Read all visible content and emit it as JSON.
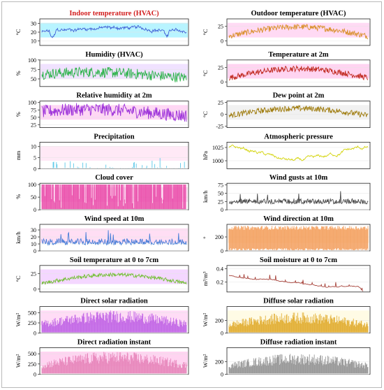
{
  "chart_data": [
    {
      "key": "indoor_temp",
      "type": "line",
      "title": "Indoor temperature (HVAC)",
      "title_color": "#d21f1f",
      "ylabel": "°C",
      "ylim": [
        5,
        35
      ],
      "yticks": [
        10,
        20,
        30
      ],
      "color": "#3f5fd6",
      "shade": "#00d9ff",
      "pattern": "temp_indoor",
      "mean": 22,
      "amp": 5,
      "noise": 2.5
    },
    {
      "key": "outdoor_temp",
      "type": "line",
      "title": "Outdoor temperature (HVAC)",
      "title_color": "#000000",
      "ylabel": "°C",
      "ylim": [
        -8,
        38
      ],
      "yticks": [
        0,
        25
      ],
      "color": "#d9902a",
      "shade": "#ff7ad6",
      "pattern": "seasonal",
      "mean": 16,
      "amp": 16,
      "noise": 5
    },
    {
      "key": "humidity",
      "type": "line",
      "title": "Humidity (HVAC)",
      "title_color": "#000000",
      "ylabel": "%",
      "ylim": [
        30,
        100
      ],
      "yticks": [
        50,
        75,
        100
      ],
      "color": "#2db34a",
      "shade": "#c896ff",
      "pattern": "noisy",
      "mean": 60,
      "amp": 8,
      "noise": 14
    },
    {
      "key": "temp_2m",
      "type": "line",
      "title": "Temperature at 2m",
      "title_color": "#000000",
      "ylabel": "°C",
      "ylim": [
        -8,
        38
      ],
      "yticks": [
        0,
        25
      ],
      "color": "#c0271c",
      "shade": "#ff66cc",
      "pattern": "seasonal",
      "mean": 15,
      "amp": 16,
      "noise": 5
    },
    {
      "key": "rel_humidity",
      "type": "line",
      "title": "Relative humidity at 2m",
      "title_color": "#000000",
      "ylabel": "%",
      "ylim": [
        15,
        105
      ],
      "yticks": [
        25,
        50,
        75,
        100
      ],
      "color": "#9b30d9",
      "shade": "#ff70d6",
      "pattern": "noisy",
      "mean": 65,
      "amp": 12,
      "noise": 22
    },
    {
      "key": "dew_point",
      "type": "line",
      "title": "Dew point at 2m",
      "title_color": "#000000",
      "ylabel": "°C",
      "ylim": [
        -28,
        28
      ],
      "yticks": [
        -25,
        0,
        25
      ],
      "color": "#9e7a0a",
      "shade": "#cccccc",
      "pattern": "seasonal",
      "mean": 5,
      "amp": 15,
      "noise": 6
    },
    {
      "key": "precip",
      "type": "spikes",
      "title": "Precipitation",
      "title_color": "#000000",
      "ylabel": "mm",
      "ylim": [
        0,
        12
      ],
      "yticks": [
        0,
        5,
        10
      ],
      "color": "#5bc8e8",
      "shade": "#ffb0e0",
      "pattern": "spikes",
      "mean": 0,
      "amp": 11,
      "noise": 0
    },
    {
      "key": "pressure",
      "type": "line",
      "title": "Atmospheric pressure",
      "title_color": "#000000",
      "ylabel": "hPa",
      "ylim": [
        985,
        1035
      ],
      "yticks": [
        1000,
        1025
      ],
      "color": "#d4d40d",
      "shade": "#ffffff",
      "pattern": "pressure",
      "mean": 1012,
      "amp": 12,
      "noise": 6
    },
    {
      "key": "cloud",
      "type": "dense",
      "title": "Cloud cover",
      "title_color": "#000000",
      "ylabel": "%",
      "ylim": [
        0,
        105
      ],
      "yticks": [
        0,
        50,
        100
      ],
      "color": "#e83fa3",
      "shade": "#ff99dd",
      "pattern": "dense_full",
      "mean": 0,
      "amp": 100,
      "noise": 0
    },
    {
      "key": "gusts",
      "type": "line",
      "title": "Wind gusts at 10m",
      "title_color": "#000000",
      "ylabel": "km/h",
      "ylim": [
        0,
        80
      ],
      "yticks": [
        0,
        25,
        50,
        75
      ],
      "color": "#4a4a4a",
      "shade": "#ffffff",
      "pattern": "gusty",
      "mean": 22,
      "amp": 0,
      "noise": 14
    },
    {
      "key": "wind_speed",
      "type": "line",
      "title": "Wind speed at 10m",
      "title_color": "#000000",
      "ylabel": "km/h",
      "ylim": [
        0,
        38
      ],
      "yticks": [
        0,
        10,
        20,
        30
      ],
      "color": "#4a80d8",
      "shade": "#ff88d8",
      "pattern": "gusty",
      "mean": 11,
      "amp": 0,
      "noise": 8
    },
    {
      "key": "wind_dir",
      "type": "dense",
      "title": "Wind direction at 10m",
      "title_color": "#000000",
      "ylabel": "°",
      "ylim": [
        0,
        380
      ],
      "yticks": [
        0,
        200
      ],
      "color": "#f39a55",
      "shade": "#ffd0a0",
      "pattern": "dense_band",
      "mean": 180,
      "amp": 360,
      "noise": 0
    },
    {
      "key": "soil_temp",
      "type": "line",
      "title": "Soil temperature at 0 to 7cm",
      "title_color": "#000000",
      "ylabel": "°C",
      "ylim": [
        -5,
        38
      ],
      "yticks": [
        0,
        25
      ],
      "color": "#6fbf2e",
      "shade": "#d76eff",
      "pattern": "seasonal",
      "mean": 16,
      "amp": 14,
      "noise": 3
    },
    {
      "key": "soil_moist",
      "type": "line",
      "title": "Soil moisture at 0 to 7cm",
      "title_color": "#000000",
      "ylabel": "m³/m³",
      "ylim": [
        0.05,
        0.45
      ],
      "yticks": [
        0.2,
        0.4
      ],
      "color": "#a8463e",
      "shade": "#ffffff",
      "pattern": "moisture",
      "mean": 0.27,
      "amp": 0.06,
      "noise": 0.01
    },
    {
      "key": "direct_solar",
      "type": "solar",
      "title": "Direct solar radiation",
      "title_color": "#000000",
      "ylabel": "W/m²",
      "ylim": [
        0,
        650
      ],
      "yticks": [
        0,
        250,
        500
      ],
      "color": "#c46ae6",
      "shade": "#ff80e0",
      "pattern": "solar",
      "mean": 0,
      "amp": 560,
      "noise": 0
    },
    {
      "key": "diffuse_solar",
      "type": "solar",
      "title": "Diffuse solar radiation",
      "title_color": "#000000",
      "ylabel": "W/m²",
      "ylim": [
        0,
        420
      ],
      "yticks": [
        0,
        200
      ],
      "color": "#e3b13a",
      "shade": "#fff0a0",
      "pattern": "solar",
      "mean": 0,
      "amp": 330,
      "noise": 0
    },
    {
      "key": "direct_instant",
      "type": "solar",
      "title": "Direct radiation instant",
      "title_color": "#000000",
      "ylabel": "W/m²",
      "ylim": [
        0,
        650
      ],
      "yticks": [
        0,
        250,
        500
      ],
      "color": "#e889bd",
      "shade": "#ff66cc",
      "pattern": "solar",
      "mean": 0,
      "amp": 560,
      "noise": 0
    },
    {
      "key": "diffuse_instant",
      "type": "solar",
      "title": "Diffuse radiation instant",
      "title_color": "#000000",
      "ylabel": "W/m²",
      "ylim": [
        0,
        420
      ],
      "yticks": [
        0,
        200
      ],
      "color": "#9a9a9a",
      "shade": "#ffffff",
      "pattern": "solar",
      "mean": 0,
      "amp": 330,
      "noise": 0
    }
  ]
}
